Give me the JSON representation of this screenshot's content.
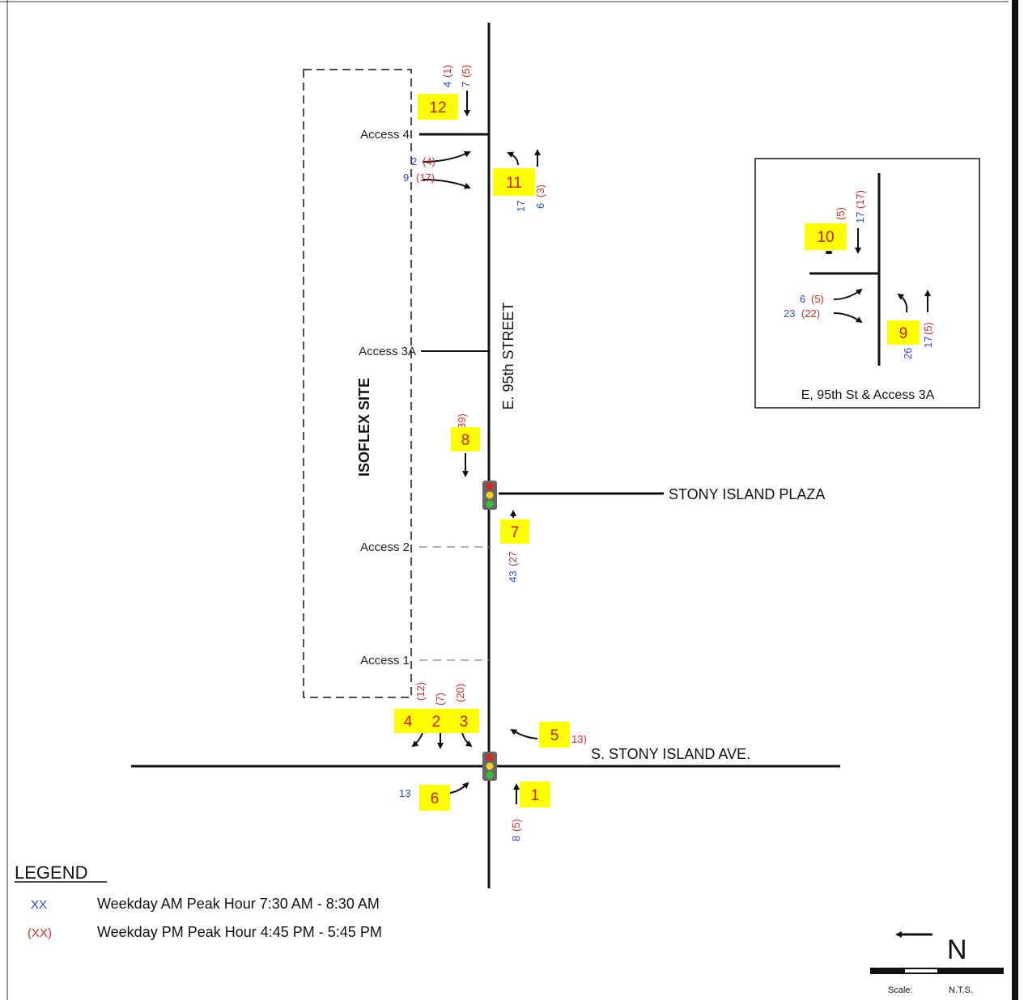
{
  "roads": {
    "main": "E. 95th STREET",
    "plaza": "STONY ISLAND PLAZA",
    "stony": "S. STONY ISLAND AVE."
  },
  "site": "ISOFLEX SITE",
  "accesses": {
    "a4": "Access 4",
    "a3a": "Access 3A",
    "a2": "Access 2",
    "a1": "Access 1"
  },
  "tags": [
    "12",
    "11",
    "10",
    "9",
    "8",
    "7",
    "5",
    "4",
    "2",
    "3",
    "6",
    "1"
  ],
  "volumes": {
    "v12_am": "4",
    "v12_pm": "(1)",
    "v12b_am": "7",
    "v12b_pm": "(5)",
    "v11a_am": "2",
    "v11a_pm": "(4)",
    "v11b_am": "9",
    "v11b_pm": "(17)",
    "v11c_am": "17",
    "v11d_am": "6",
    "v11d_pm": "(3)",
    "v8_pm": "39)",
    "v7_am": "43",
    "v7_pm": "(27",
    "v4_pm": "(12)",
    "v2_pm": "(7)",
    "v3_pm": "(20)",
    "v5_pm": "13)",
    "v6_am": "13",
    "v1_am": "8",
    "v1_pm": "(5)"
  },
  "inset": {
    "title": "E, 95th St & Access 3A",
    "v10a_pm": "(5)",
    "v10b_am": "17",
    "v10b_pm": "(17)",
    "v9a_am": "6",
    "v9a_pm": "(5)",
    "v9b_am": "23",
    "v9b_pm": "(22)",
    "v9c_am": "26",
    "v9d_am": "17",
    "v9d_pm": "(5)"
  },
  "legend": {
    "title": "LEGEND",
    "am_sym": "XX",
    "am_text": "Weekday AM Peak Hour 7:30 AM - 8:30 AM",
    "pm_sym": "(XX)",
    "pm_text": "Weekday PM Peak Hour 4:45 PM - 5:45 PM",
    "am_color": "#2a4bd7",
    "pm_color": "#d42a2a"
  },
  "north": {
    "label": "N",
    "scale_label": "Scale:",
    "scale_value": "N.T.S."
  }
}
